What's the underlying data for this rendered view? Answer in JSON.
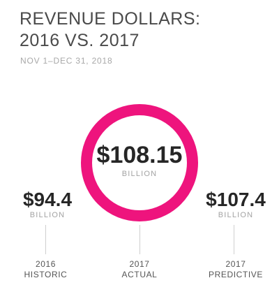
{
  "chart_data": {
    "type": "table",
    "title": [
      "REVENUE DOLLARS:",
      "2016 VS. 2017"
    ],
    "subtitle": "NOV 1–DEC 31, 2018",
    "accent_color": "#ee147d",
    "unit": "BILLION",
    "series": [
      {
        "label_line1": "2016",
        "label_line2": "HISTORIC",
        "value_text": "$94.4",
        "value": 94.4
      },
      {
        "label_line1": "2017",
        "label_line2": "ACTUAL",
        "value_text": "$108.15",
        "value": 108.15
      },
      {
        "label_line1": "2017",
        "label_line2": "PREDICTIVE",
        "value_text": "$107.4",
        "value": 107.4
      }
    ]
  }
}
